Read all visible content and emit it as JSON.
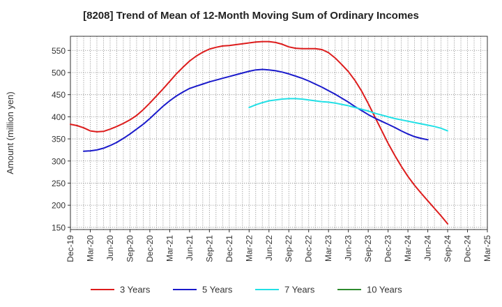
{
  "chart_data": {
    "type": "line",
    "title": "[8208]  Trend of Mean of 12-Month Moving Sum of Ordinary Incomes",
    "xlabel": "",
    "ylabel": "Amount (million yen)",
    "ylim": [
      145,
      582
    ],
    "yticks": [
      150,
      200,
      250,
      300,
      350,
      400,
      450,
      500,
      550
    ],
    "x_start": "Dec-19",
    "x_end": "Mar-25",
    "xticks": [
      "Dec-19",
      "Mar-20",
      "Jun-20",
      "Sep-20",
      "Dec-20",
      "Mar-21",
      "Jun-21",
      "Sep-21",
      "Dec-21",
      "Mar-22",
      "Jun-22",
      "Sep-22",
      "Dec-22",
      "Mar-23",
      "Jun-23",
      "Sep-23",
      "Dec-23",
      "Mar-24",
      "Jun-24",
      "Sep-24",
      "Dec-24",
      "Mar-25"
    ],
    "grid": true,
    "legend_position": "bottom",
    "series": [
      {
        "name": "3 Years",
        "color": "#dd1c1c",
        "start_index": 0,
        "values": [
          383,
          380,
          375,
          368,
          366,
          367,
          372,
          378,
          385,
          393,
          403,
          416,
          431,
          447,
          463,
          480,
          497,
          512,
          526,
          537,
          546,
          553,
          557,
          560,
          561,
          563,
          565,
          567,
          569,
          570,
          570,
          568,
          564,
          558,
          555,
          554,
          554,
          554,
          552,
          545,
          533,
          518,
          502,
          482,
          458,
          430,
          400,
          370,
          340,
          313,
          288,
          265,
          245,
          227,
          210,
          193,
          176,
          158
        ]
      },
      {
        "name": "5 Years",
        "color": "#1a1acb",
        "start_index": 2,
        "values": [
          322,
          323,
          325,
          329,
          335,
          342,
          351,
          361,
          372,
          383,
          396,
          410,
          424,
          436,
          447,
          456,
          464,
          469,
          474,
          479,
          483,
          487,
          491,
          495,
          499,
          503,
          506,
          507,
          506,
          504,
          501,
          497,
          492,
          487,
          481,
          474,
          467,
          459,
          451,
          442,
          433,
          423,
          414,
          405,
          397,
          390,
          383,
          376,
          368,
          361,
          355,
          351,
          348
        ]
      },
      {
        "name": "7 Years",
        "color": "#22e0e6",
        "start_index": 27,
        "values": [
          421,
          427,
          432,
          436,
          438,
          440,
          441,
          441,
          440,
          438,
          436,
          434,
          433,
          431,
          428,
          425,
          421,
          417,
          413,
          408,
          404,
          400,
          396,
          393,
          390,
          387,
          384,
          381,
          378,
          374,
          368
        ]
      },
      {
        "name": "10 Years",
        "color": "#2e8b2e",
        "start_index": 0,
        "values": []
      }
    ]
  }
}
